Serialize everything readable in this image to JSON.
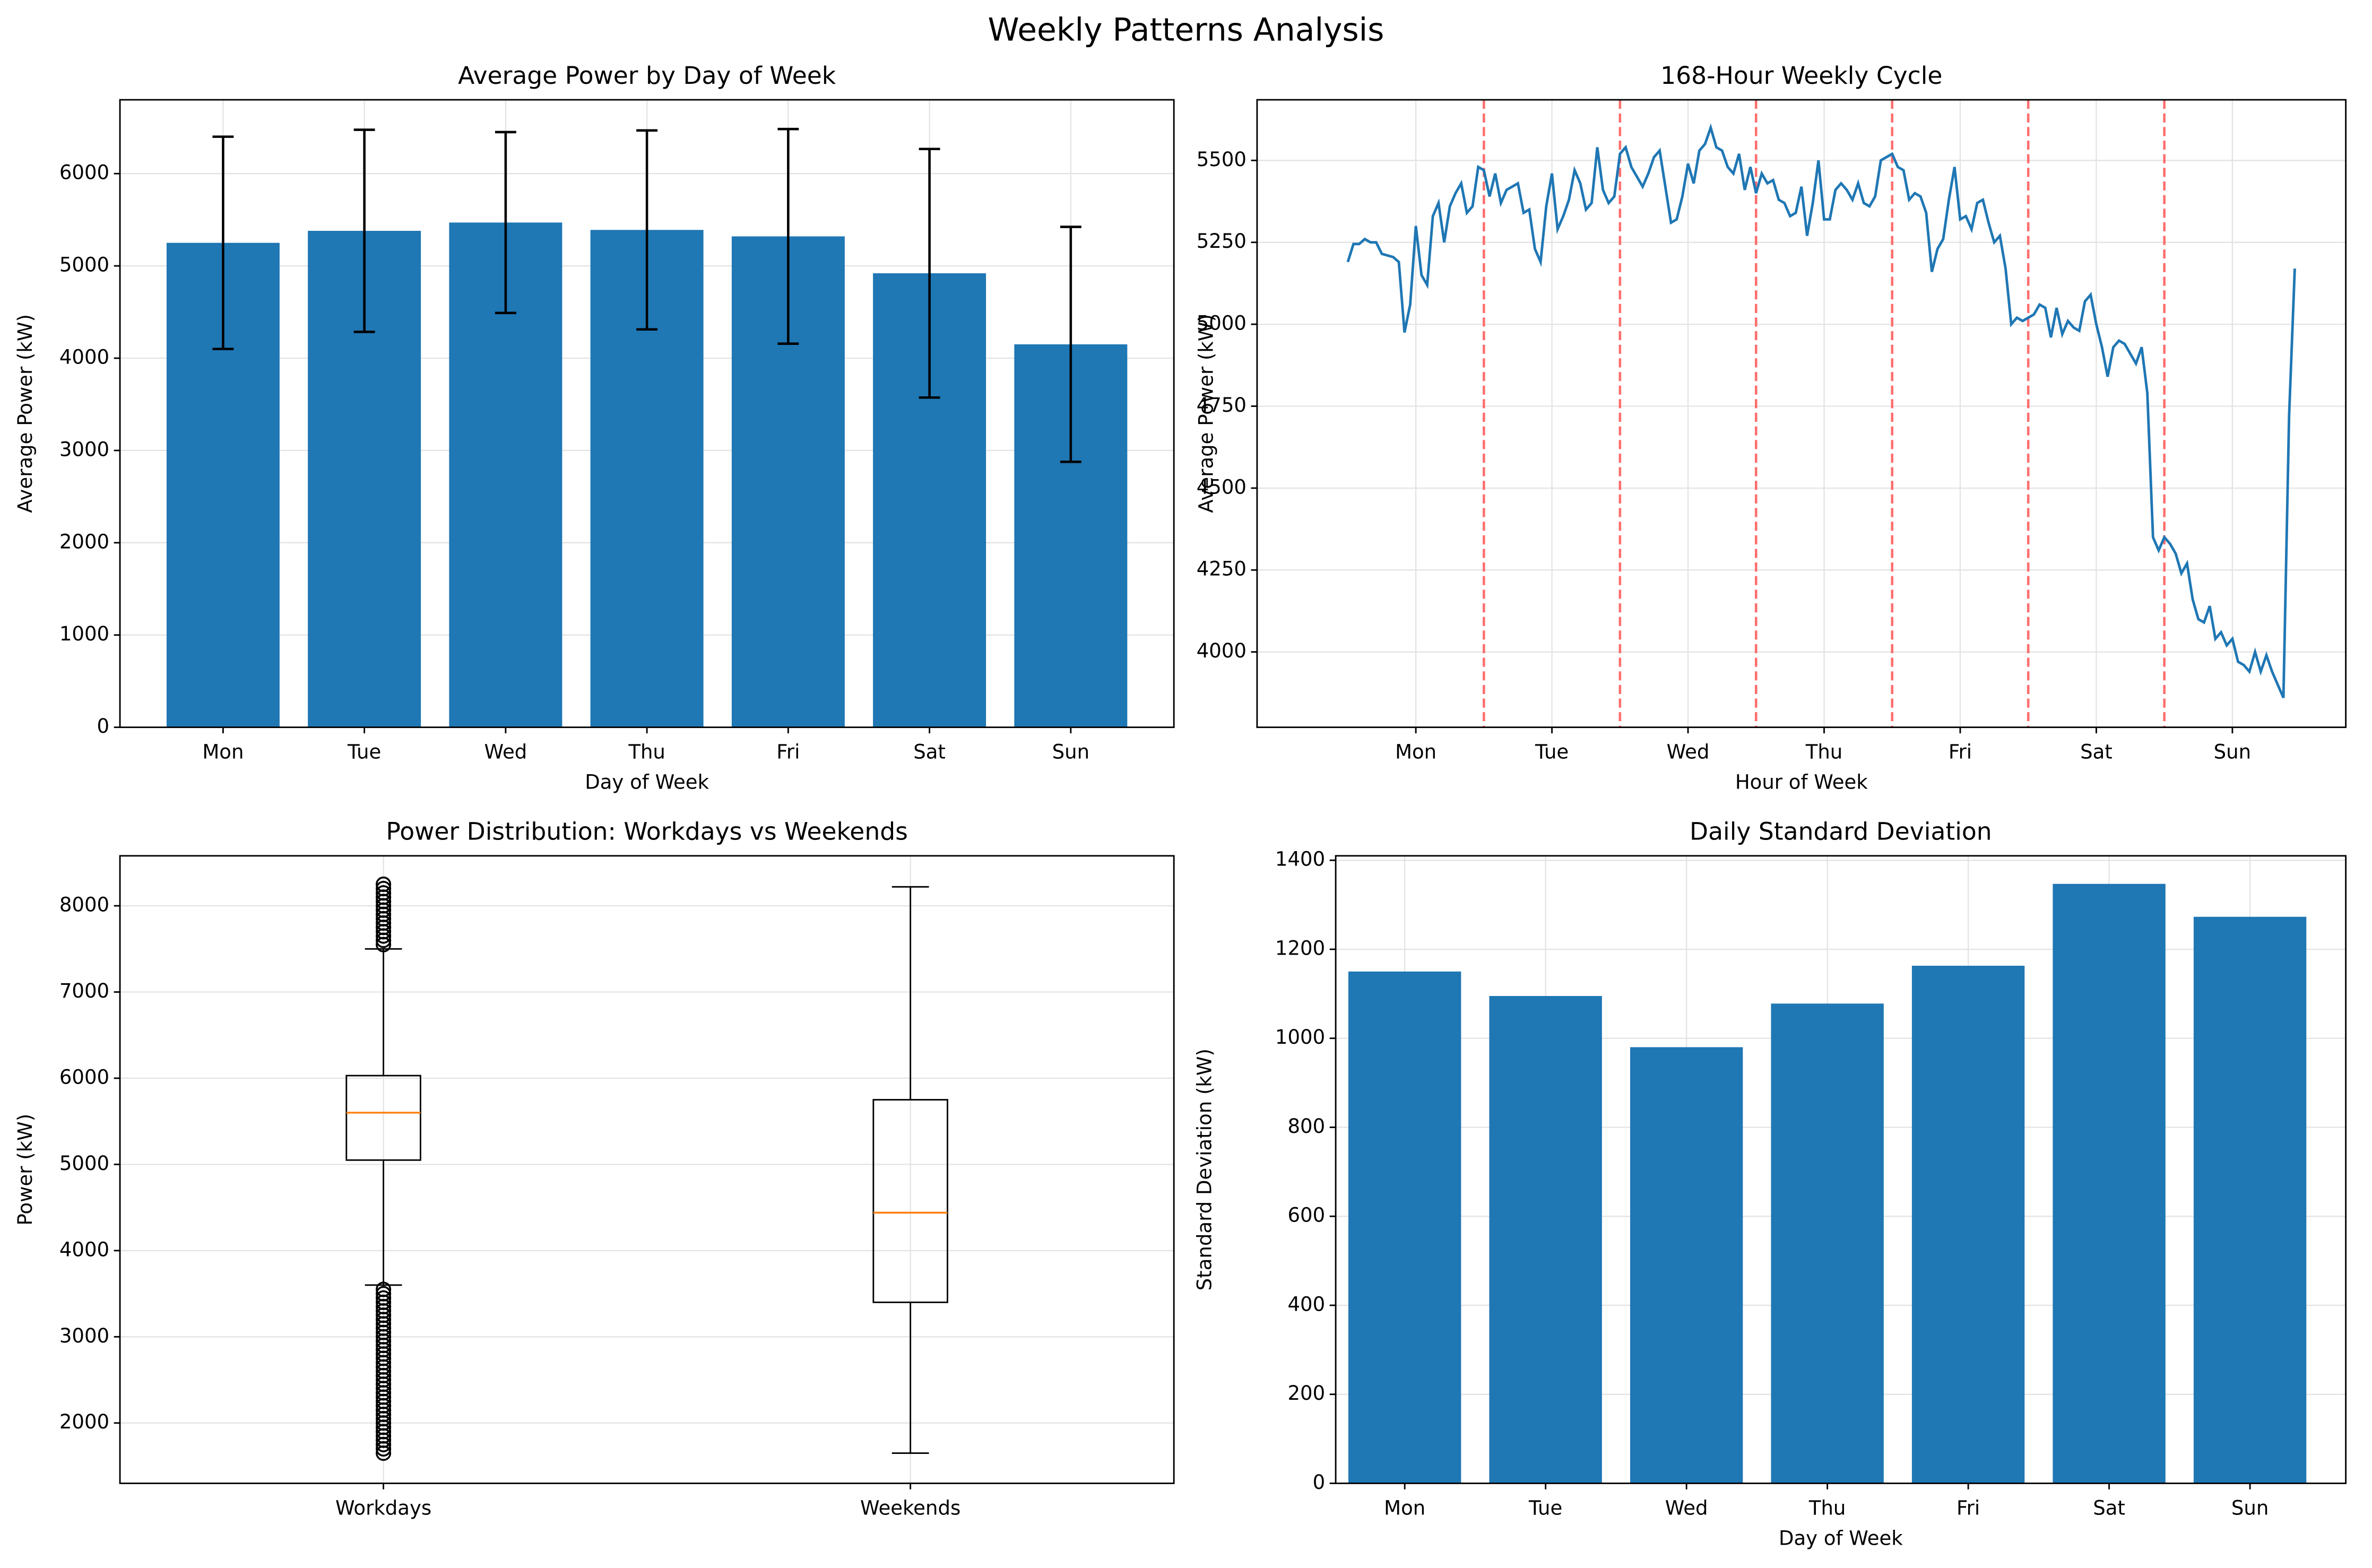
{
  "title": "Weekly Patterns Analysis",
  "chart_data": [
    {
      "type": "bar",
      "title": "Average Power by Day of Week",
      "xlabel": "Day of Week",
      "ylabel": "Average Power (kW)",
      "categories": [
        "Mon",
        "Tue",
        "Wed",
        "Thu",
        "Fri",
        "Sat",
        "Sun"
      ],
      "values": [
        5250,
        5380,
        5470,
        5390,
        5320,
        4920,
        4150
      ],
      "errors": [
        1150,
        1095,
        980,
        1078,
        1163,
        1347,
        1273
      ],
      "color": "#1f77b4",
      "error_color": "#000000",
      "ylim": [
        0,
        6800
      ],
      "yticks": [
        0,
        1000,
        2000,
        3000,
        4000,
        5000,
        6000
      ],
      "grid": true
    },
    {
      "type": "line",
      "title": "168-Hour Weekly Cycle",
      "xlabel": "Hour of Week",
      "ylabel": "Average Power (kW)",
      "x": [
        0,
        1,
        2,
        3,
        4,
        5,
        6,
        7,
        8,
        9,
        10,
        11,
        12,
        13,
        14,
        15,
        16,
        17,
        18,
        19,
        20,
        21,
        22,
        23,
        24,
        25,
        26,
        27,
        28,
        29,
        30,
        31,
        32,
        33,
        34,
        35,
        36,
        37,
        38,
        39,
        40,
        41,
        42,
        43,
        44,
        45,
        46,
        47,
        48,
        49,
        50,
        51,
        52,
        53,
        54,
        55,
        56,
        57,
        58,
        59,
        60,
        61,
        62,
        63,
        64,
        65,
        66,
        67,
        68,
        69,
        70,
        71,
        72,
        73,
        74,
        75,
        76,
        77,
        78,
        79,
        80,
        81,
        82,
        83,
        84,
        85,
        86,
        87,
        88,
        89,
        90,
        91,
        92,
        93,
        94,
        95,
        96,
        97,
        98,
        99,
        100,
        101,
        102,
        103,
        104,
        105,
        106,
        107,
        108,
        109,
        110,
        111,
        112,
        113,
        114,
        115,
        116,
        117,
        118,
        119,
        120,
        121,
        122,
        123,
        124,
        125,
        126,
        127,
        128,
        129,
        130,
        131,
        132,
        133,
        134,
        135,
        136,
        137,
        138,
        139,
        140,
        141,
        142,
        143,
        144,
        145,
        146,
        147,
        148,
        149,
        150,
        151,
        152,
        153,
        154,
        155,
        156,
        157,
        158,
        159,
        160,
        161,
        162,
        163,
        164,
        165,
        166,
        167
      ],
      "values": [
        5190,
        5245,
        5245,
        5260,
        5250,
        5250,
        5215,
        5210,
        5205,
        5190,
        4975,
        5060,
        5300,
        5150,
        5120,
        5330,
        5370,
        5250,
        5360,
        5400,
        5430,
        5340,
        5360,
        5480,
        5470,
        5390,
        5460,
        5370,
        5410,
        5420,
        5430,
        5340,
        5350,
        5230,
        5190,
        5360,
        5460,
        5290,
        5330,
        5380,
        5470,
        5430,
        5350,
        5370,
        5540,
        5410,
        5370,
        5390,
        5520,
        5540,
        5480,
        5450,
        5420,
        5460,
        5510,
        5530,
        5420,
        5310,
        5320,
        5390,
        5490,
        5430,
        5530,
        5550,
        5600,
        5540,
        5530,
        5480,
        5460,
        5520,
        5410,
        5480,
        5400,
        5460,
        5430,
        5440,
        5380,
        5370,
        5330,
        5340,
        5420,
        5270,
        5370,
        5500,
        5320,
        5320,
        5410,
        5430,
        5410,
        5380,
        5430,
        5370,
        5360,
        5390,
        5500,
        5510,
        5520,
        5480,
        5470,
        5380,
        5400,
        5390,
        5340,
        5160,
        5230,
        5260,
        5380,
        5480,
        5320,
        5330,
        5290,
        5370,
        5380,
        5310,
        5250,
        5270,
        5170,
        5000,
        5020,
        5010,
        5020,
        5030,
        5060,
        5050,
        4960,
        5050,
        4970,
        5010,
        4990,
        4980,
        5070,
        5090,
        5000,
        4930,
        4840,
        4930,
        4950,
        4940,
        4910,
        4880,
        4930,
        4790,
        4350,
        4310,
        4350,
        4330,
        4300,
        4240,
        4270,
        4160,
        4100,
        4090,
        4140,
        4040,
        4060,
        4020,
        4040,
        3970,
        3960,
        3940,
        4000,
        3940,
        3990,
        3940,
        3900,
        3860,
        4720,
        5170
      ],
      "color": "#1f77b4",
      "vlines": [
        24,
        48,
        72,
        96,
        120,
        144
      ],
      "vline_color": "#ff5555",
      "xlim": [
        -16,
        176
      ],
      "xticks": [
        {
          "value": 12,
          "label": "Mon"
        },
        {
          "value": 36,
          "label": "Tue"
        },
        {
          "value": 60,
          "label": "Wed"
        },
        {
          "value": 84,
          "label": "Thu"
        },
        {
          "value": 108,
          "label": "Fri"
        },
        {
          "value": 132,
          "label": "Sat"
        },
        {
          "value": 156,
          "label": "Sun"
        }
      ],
      "ylim": [
        3770,
        5685
      ],
      "yticks": [
        4000,
        4250,
        4500,
        4750,
        5000,
        5250,
        5500
      ],
      "grid": true
    },
    {
      "type": "box",
      "title": "Power Distribution: Workdays vs Weekends",
      "ylabel": "Power (kW)",
      "categories": [
        "Workdays",
        "Weekends"
      ],
      "boxes": [
        {
          "whisker_low": 3600,
          "q1": 5050,
          "median": 5600,
          "q3": 6030,
          "whisker_high": 7500,
          "fliers": [
            1650,
            1700,
            1750,
            1800,
            1850,
            1900,
            1950,
            2000,
            2050,
            2100,
            2150,
            2200,
            2250,
            2300,
            2350,
            2400,
            2450,
            2500,
            2550,
            2600,
            2650,
            2700,
            2750,
            2800,
            2850,
            2900,
            2950,
            3000,
            3050,
            3100,
            3150,
            3200,
            3250,
            3300,
            3350,
            3400,
            3450,
            3500,
            3550,
            7550,
            7600,
            7650,
            7700,
            7750,
            7800,
            7850,
            7900,
            7950,
            8000,
            8050,
            8100,
            8150,
            8200,
            8250
          ]
        },
        {
          "whisker_low": 1650,
          "q1": 3400,
          "median": 4440,
          "q3": 5750,
          "whisker_high": 8220,
          "fliers": []
        }
      ],
      "median_color": "#ff7f0e",
      "ylim": [
        1300,
        8580
      ],
      "yticks": [
        2000,
        3000,
        4000,
        5000,
        6000,
        7000,
        8000
      ],
      "grid": true
    },
    {
      "type": "bar",
      "title": "Daily Standard Deviation",
      "xlabel": "Day of Week",
      "ylabel": "Standard Deviation (kW)",
      "categories": [
        "Mon",
        "Tue",
        "Wed",
        "Thu",
        "Fri",
        "Sat",
        "Sun"
      ],
      "values": [
        1150,
        1095,
        980,
        1078,
        1163,
        1347,
        1273
      ],
      "color": "#1f77b4",
      "ylim": [
        0,
        1410
      ],
      "yticks": [
        0,
        200,
        400,
        600,
        800,
        1000,
        1200,
        1400
      ],
      "grid": true
    }
  ]
}
